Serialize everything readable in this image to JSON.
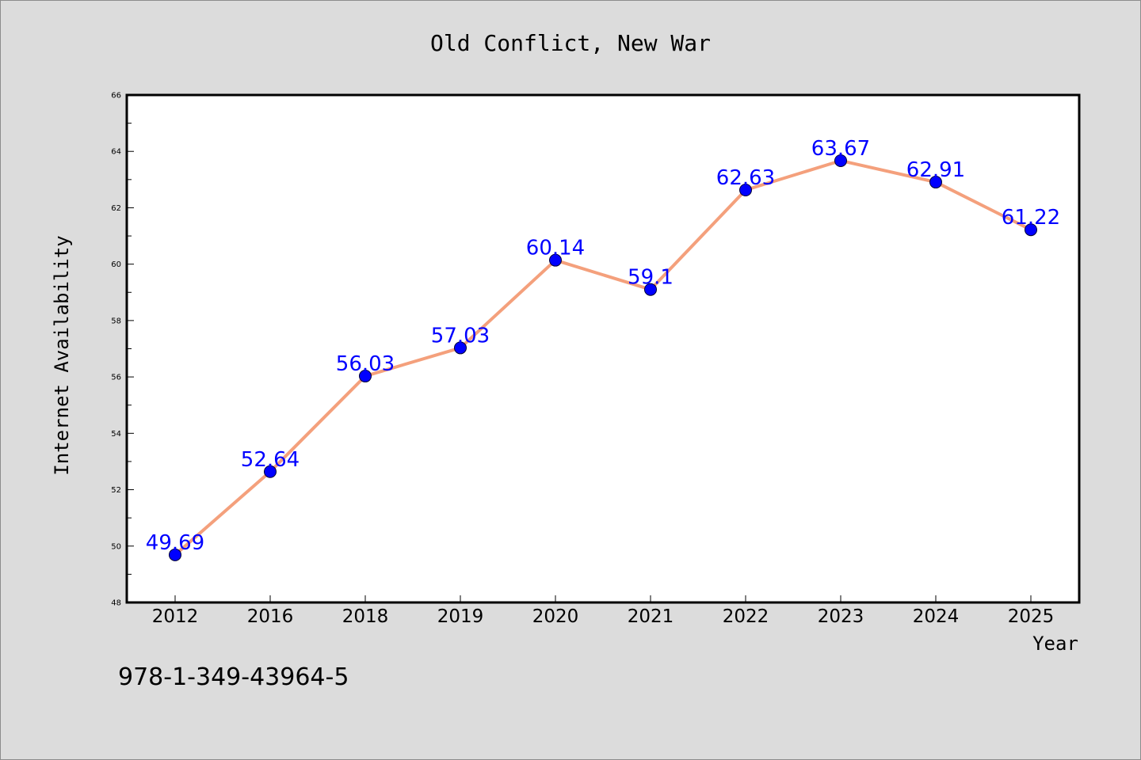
{
  "chart_data": {
    "type": "line",
    "title": "Old Conflict, New War",
    "xlabel": "Year",
    "ylabel": "Internet Availability",
    "categories": [
      "2012",
      "2016",
      "2018",
      "2019",
      "2020",
      "2021",
      "2022",
      "2023",
      "2024",
      "2025"
    ],
    "series": [
      {
        "values": [
          49.69,
          52.64,
          56.03,
          57.03,
          60.14,
          59.1,
          62.63,
          63.67,
          62.91,
          61.22
        ],
        "labels": [
          "49.69",
          "52.64",
          "56.03",
          "57.03",
          "60.14",
          "59.1",
          "62.63",
          "63.67",
          "62.91",
          "61.22"
        ],
        "line_color": "#f4a07c",
        "marker_color": "#0000ff"
      }
    ],
    "ylim": [
      48,
      66
    ],
    "yticks": [
      "48",
      "50",
      "52",
      "54",
      "56",
      "58",
      "60",
      "62",
      "64",
      "66"
    ],
    "grid": false,
    "legend": "none"
  },
  "footer": {
    "isbn": "978-1-349-43964-5"
  },
  "colors": {
    "background": "#dcdcdc",
    "plot_background": "#ffffff",
    "line": "#f4a07c",
    "marker": "#0000ff",
    "data_label": "#0000ff"
  }
}
